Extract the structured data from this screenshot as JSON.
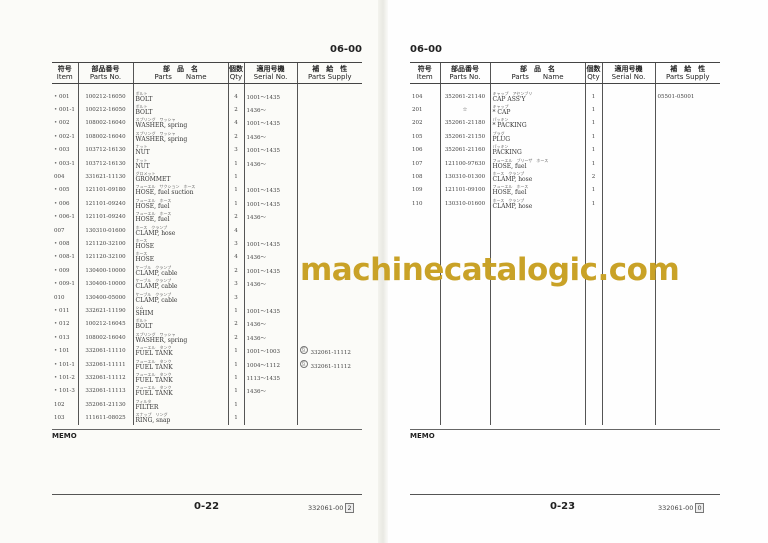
{
  "headers": {
    "item_jp": "符号",
    "item": "Item",
    "partno_jp": "部品番号",
    "partno": "Parts No.",
    "name_jp": "部　品　名",
    "name": "Parts　　Name",
    "qty_jp": "個数",
    "qty": "Qty",
    "serial_jp": "適用号機",
    "serial": "Serial No.",
    "supply_jp": "補　給　性",
    "supply": "Parts Supply"
  },
  "left_page": {
    "section": "06-00",
    "memo": "MEMO",
    "page_number": "0-22",
    "code": "332061-00",
    "code_rev": "2",
    "rows": [
      {
        "bullet": "•",
        "item": "001",
        "part": "100212-16050",
        "kana": "ボルト",
        "name": "BOLT",
        "qty": "4",
        "serial": "1001～1435",
        "supply": ""
      },
      {
        "bullet": "•",
        "item": "001-1",
        "part": "100212-16050",
        "kana": "ボルト",
        "name": "BOLT",
        "qty": "2",
        "serial": "1436～",
        "supply": ""
      },
      {
        "bullet": "•",
        "item": "002",
        "part": "108002-16040",
        "kana": "スプリング　ワッシャ",
        "name": "WASHER, spring",
        "qty": "4",
        "serial": "1001～1435",
        "supply": ""
      },
      {
        "bullet": "•",
        "item": "002-1",
        "part": "108002-16040",
        "kana": "スプリング　ワッシャ",
        "name": "WASHER, spring",
        "qty": "2",
        "serial": "1436～",
        "supply": ""
      },
      {
        "bullet": "•",
        "item": "003",
        "part": "103712-16130",
        "kana": "ナット",
        "name": "NUT",
        "qty": "3",
        "serial": "1001～1435",
        "supply": ""
      },
      {
        "bullet": "•",
        "item": "003-1",
        "part": "103712-16130",
        "kana": "ナット",
        "name": "NUT",
        "qty": "1",
        "serial": "1436～",
        "supply": ""
      },
      {
        "bullet": "",
        "item": "004",
        "part": "331621-11130",
        "kana": "グロメット",
        "name": "GROMMET",
        "qty": "1",
        "serial": "",
        "supply": ""
      },
      {
        "bullet": "•",
        "item": "005",
        "part": "121101-09180",
        "kana": "フューエル　サクション　ホース",
        "name": "HOSE, fuel suction",
        "qty": "1",
        "serial": "1001～1435",
        "supply": ""
      },
      {
        "bullet": "•",
        "item": "006",
        "part": "121101-09240",
        "kana": "フューエル　ホース",
        "name": "HOSE, fuel",
        "qty": "1",
        "serial": "1001～1435",
        "supply": ""
      },
      {
        "bullet": "•",
        "item": "006-1",
        "part": "121101-09240",
        "kana": "フューエル　ホース",
        "name": "HOSE, fuel",
        "qty": "2",
        "serial": "1436～",
        "supply": ""
      },
      {
        "bullet": "",
        "item": "007",
        "part": "130310-01600",
        "kana": "ホース　クランプ",
        "name": "CLAMP, hose",
        "qty": "4",
        "serial": "",
        "supply": ""
      },
      {
        "bullet": "•",
        "item": "008",
        "part": "121120-32100",
        "kana": "ホース",
        "name": "HOSE",
        "qty": "3",
        "serial": "1001～1435",
        "supply": ""
      },
      {
        "bullet": "•",
        "item": "008-1",
        "part": "121120-32100",
        "kana": "ホース",
        "name": "HOSE",
        "qty": "4",
        "serial": "1436～",
        "supply": ""
      },
      {
        "bullet": "•",
        "item": "009",
        "part": "130400-10000",
        "kana": "ケーブル　クランプ",
        "name": "CLAMP, cable",
        "qty": "2",
        "serial": "1001～1435",
        "supply": ""
      },
      {
        "bullet": "•",
        "item": "009-1",
        "part": "130400-10000",
        "kana": "ケーブル　クランプ",
        "name": "CLAMP, cable",
        "qty": "3",
        "serial": "1436～",
        "supply": ""
      },
      {
        "bullet": "",
        "item": "010",
        "part": "130400-05000",
        "kana": "ケーブル　クランプ",
        "name": "CLAMP, cable",
        "qty": "3",
        "serial": "",
        "supply": ""
      },
      {
        "bullet": "•",
        "item": "011",
        "part": "332621-11190",
        "kana": "シム",
        "name": "SHIM",
        "qty": "1",
        "serial": "1001～1435",
        "supply": ""
      },
      {
        "bullet": "•",
        "item": "012",
        "part": "100212-16045",
        "kana": "ボルト",
        "name": "BOLT",
        "qty": "2",
        "serial": "1436～",
        "supply": ""
      },
      {
        "bullet": "•",
        "item": "013",
        "part": "108002-16040",
        "kana": "スプリング　ワッシャ",
        "name": "WASHER, spring",
        "qty": "2",
        "serial": "1436～",
        "supply": ""
      },
      {
        "bullet": "•",
        "item": "101",
        "part": "332061-11110",
        "kana": "フューエル　タンク",
        "name": "FUEL TANK",
        "qty": "1",
        "serial": "1001～1003",
        "supply": "332061-11112",
        "supply_mark": "互"
      },
      {
        "bullet": "•",
        "item": "101-1",
        "part": "332061-11111",
        "kana": "フューエル　タンク",
        "name": "FUEL TANK",
        "qty": "1",
        "serial": "1004～1112",
        "supply": "332061-11112",
        "supply_mark": "互"
      },
      {
        "bullet": "•",
        "item": "101-2",
        "part": "332061-11112",
        "kana": "フューエル　タンク",
        "name": "FUEL TANK",
        "qty": "1",
        "serial": "1113～1435",
        "supply": ""
      },
      {
        "bullet": "•",
        "item": "101-3",
        "part": "332061-11113",
        "kana": "フューエル　タンク",
        "name": "FUEL TANK",
        "qty": "1",
        "serial": "1436～",
        "supply": ""
      },
      {
        "bullet": "",
        "item": "102",
        "part": "352061-21130",
        "kana": "フィルタ",
        "name": "FILTER",
        "qty": "1",
        "serial": "",
        "supply": ""
      },
      {
        "bullet": "",
        "item": "103",
        "part": "111611-08025",
        "kana": "スナップ　リング",
        "name": "RING, snap",
        "qty": "1",
        "serial": "",
        "supply": ""
      }
    ]
  },
  "right_page": {
    "section": "06-00",
    "memo": "MEMO",
    "page_number": "0-23",
    "code": "332061-00",
    "code_rev": "0",
    "rows": [
      {
        "bullet": "",
        "item": "104",
        "part": "352061-21140",
        "kana": "キャップ　アセンブリ",
        "name": "CAP ASS'Y",
        "qty": "1",
        "serial": "",
        "supply": "05501-05001"
      },
      {
        "bullet": "",
        "item": "201",
        "part": "☆",
        "kana": "キャップ",
        "name": "* CAP",
        "qty": "1",
        "serial": "",
        "supply": ""
      },
      {
        "bullet": "",
        "item": "202",
        "part": "352061-21180",
        "kana": "パッキン",
        "name": "* PACKING",
        "qty": "1",
        "serial": "",
        "supply": ""
      },
      {
        "bullet": "",
        "item": "105",
        "part": "352061-21150",
        "kana": "プラグ",
        "name": "PLUG",
        "qty": "1",
        "serial": "",
        "supply": ""
      },
      {
        "bullet": "",
        "item": "106",
        "part": "352061-21160",
        "kana": "パッキン",
        "name": "PACKING",
        "qty": "1",
        "serial": "",
        "supply": ""
      },
      {
        "bullet": "",
        "item": "107",
        "part": "121100-97630",
        "kana": "フューエル　ブリーザ　ホース",
        "name": "HOSE, fuel",
        "qty": "1",
        "serial": "",
        "supply": ""
      },
      {
        "bullet": "",
        "item": "108",
        "part": "130310-01300",
        "kana": "ホース　クランプ",
        "name": "CLAMP, hose",
        "qty": "2",
        "serial": "",
        "supply": ""
      },
      {
        "bullet": "",
        "item": "109",
        "part": "121101-09100",
        "kana": "フューエル　ホース",
        "name": "HOSE, fuel",
        "qty": "1",
        "serial": "",
        "supply": ""
      },
      {
        "bullet": "",
        "item": "110",
        "part": "130310-01600",
        "kana": "ホース　クランプ",
        "name": "CLAMP, hose",
        "qty": "1",
        "serial": "",
        "supply": ""
      }
    ]
  },
  "watermark": "machinecatalogic.com",
  "colors": {
    "watermark": "#c9a227",
    "ink": "#333333"
  }
}
